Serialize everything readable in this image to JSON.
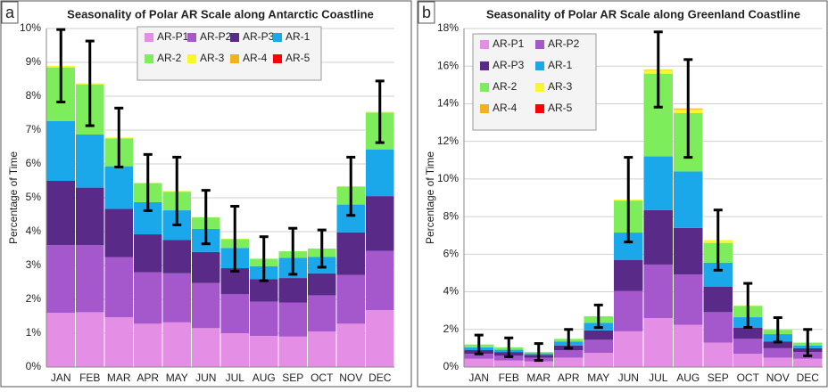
{
  "chart_data": [
    {
      "type": "bar",
      "panel_label": "a",
      "title": "Seasonality of Polar AR Scale along Antarctic Coastline",
      "y_label": "Percentage of Time",
      "categories": [
        "JAN",
        "FEB",
        "MAR",
        "APR",
        "MAY",
        "JUN",
        "JUL",
        "AUG",
        "SEP",
        "OCT",
        "NOV",
        "DEC"
      ],
      "series": [
        {
          "name": "AR-P1",
          "color": "#e48ee6",
          "values": [
            1.6,
            1.62,
            1.47,
            1.28,
            1.32,
            1.15,
            1.0,
            0.92,
            0.9,
            1.05,
            1.28,
            1.68
          ]
        },
        {
          "name": "AR-P2",
          "color": "#a557cc",
          "values": [
            2.0,
            1.98,
            1.78,
            1.52,
            1.45,
            1.33,
            1.15,
            1.01,
            1.0,
            1.07,
            1.44,
            1.75
          ]
        },
        {
          "name": "AR-P3",
          "color": "#5a2a88",
          "values": [
            1.9,
            1.7,
            1.42,
            1.12,
            0.98,
            0.92,
            0.77,
            0.67,
            0.73,
            0.65,
            1.26,
            1.62
          ]
        },
        {
          "name": "AR-1",
          "color": "#1ba8ea",
          "values": [
            1.77,
            1.57,
            1.26,
            0.95,
            0.88,
            0.68,
            0.6,
            0.38,
            0.6,
            0.48,
            0.82,
            1.38
          ]
        },
        {
          "name": "AR-2",
          "color": "#7ded5c",
          "values": [
            1.58,
            1.48,
            0.82,
            0.56,
            0.55,
            0.34,
            0.26,
            0.22,
            0.19,
            0.25,
            0.53,
            1.09
          ]
        },
        {
          "name": "AR-3",
          "color": "#f7f72a",
          "values": [
            0.05,
            0.03,
            0.03,
            0.02,
            0.02,
            0.01,
            0.01,
            0,
            0,
            0,
            0.01,
            0.02
          ]
        },
        {
          "name": "AR-4",
          "color": "#f5b020",
          "values": [
            0,
            0,
            0,
            0,
            0,
            0,
            0,
            0,
            0,
            0,
            0,
            0
          ]
        },
        {
          "name": "AR-5",
          "color": "#ff0000",
          "values": [
            0,
            0,
            0,
            0,
            0,
            0,
            0,
            0,
            0,
            0,
            0,
            0
          ]
        }
      ],
      "errors": [
        1.07,
        1.25,
        0.87,
        0.83,
        1.0,
        0.79,
        0.96,
        0.65,
        0.68,
        0.55,
        0.86,
        0.91
      ],
      "ylim": [
        0,
        10
      ],
      "yticks": [
        {
          "value": 0,
          "label": "0%"
        },
        {
          "value": 1,
          "label": "1%"
        },
        {
          "value": 2,
          "label": "2%"
        },
        {
          "value": 3,
          "label": "3%"
        },
        {
          "value": 4,
          "label": "4%"
        },
        {
          "value": 5,
          "label": "5%"
        },
        {
          "value": 6,
          "label": "6%"
        },
        {
          "value": 7,
          "label": "7%"
        },
        {
          "value": 8,
          "label": "8%"
        },
        {
          "value": 9,
          "label": "9%"
        },
        {
          "value": 10,
          "label": "10%"
        }
      ],
      "grid": true,
      "legend": "top-center"
    },
    {
      "type": "bar",
      "panel_label": "b",
      "title": "Seasonality of Polar AR Scale along Greenland Coastline",
      "y_label": "Percentage of Time",
      "categories": [
        "JAN",
        "FEB",
        "MAR",
        "APR",
        "MAY",
        "JUN",
        "JUL",
        "AUG",
        "SEP",
        "OCT",
        "NOV",
        "DEC"
      ],
      "series": [
        {
          "name": "AR-P1",
          "color": "#e48ee6",
          "values": [
            0.45,
            0.35,
            0.3,
            0.5,
            0.75,
            1.9,
            2.6,
            2.25,
            1.3,
            0.7,
            0.5,
            0.45
          ]
        },
        {
          "name": "AR-P2",
          "color": "#a557cc",
          "values": [
            0.25,
            0.25,
            0.2,
            0.4,
            0.7,
            2.15,
            2.85,
            2.67,
            1.62,
            0.8,
            0.5,
            0.35
          ]
        },
        {
          "name": "AR-P3",
          "color": "#5a2a88",
          "values": [
            0.2,
            0.2,
            0.15,
            0.25,
            0.5,
            1.65,
            2.9,
            2.48,
            1.36,
            0.6,
            0.35,
            0.2
          ]
        },
        {
          "name": "AR-1",
          "color": "#1ba8ea",
          "values": [
            0.15,
            0.12,
            0.08,
            0.2,
            0.4,
            1.45,
            2.85,
            3.0,
            1.27,
            0.55,
            0.4,
            0.15
          ]
        },
        {
          "name": "AR-2",
          "color": "#7ded5c",
          "values": [
            0.15,
            0.13,
            0.07,
            0.15,
            0.35,
            1.7,
            4.4,
            3.1,
            1.05,
            0.6,
            0.23,
            0.15
          ]
        },
        {
          "name": "AR-3",
          "color": "#f7f72a",
          "values": [
            0,
            0,
            0,
            0,
            0,
            0.05,
            0.2,
            0.2,
            0.15,
            0.03,
            0,
            0
          ]
        },
        {
          "name": "AR-4",
          "color": "#f5b020",
          "values": [
            0,
            0,
            0,
            0,
            0,
            0,
            0.02,
            0.05,
            0,
            0,
            0,
            0
          ]
        },
        {
          "name": "AR-5",
          "color": "#ff0000",
          "values": [
            0,
            0,
            0,
            0,
            0,
            0,
            0,
            0,
            0,
            0,
            0,
            0
          ]
        }
      ],
      "errors": [
        0.5,
        0.5,
        0.45,
        0.5,
        0.6,
        2.25,
        2.0,
        2.6,
        1.6,
        1.17,
        0.65,
        0.7
      ],
      "ylim": [
        0,
        18
      ],
      "yticks": [
        {
          "value": 0,
          "label": "0%"
        },
        {
          "value": 2,
          "label": "2%"
        },
        {
          "value": 4,
          "label": "4%"
        },
        {
          "value": 6,
          "label": "6%"
        },
        {
          "value": 8,
          "label": "8%"
        },
        {
          "value": 10,
          "label": "10%"
        },
        {
          "value": 12,
          "label": "12%"
        },
        {
          "value": 14,
          "label": "14%"
        },
        {
          "value": 16,
          "label": "16%"
        },
        {
          "value": 18,
          "label": "18%"
        }
      ],
      "grid": true,
      "legend": "top-left"
    }
  ]
}
